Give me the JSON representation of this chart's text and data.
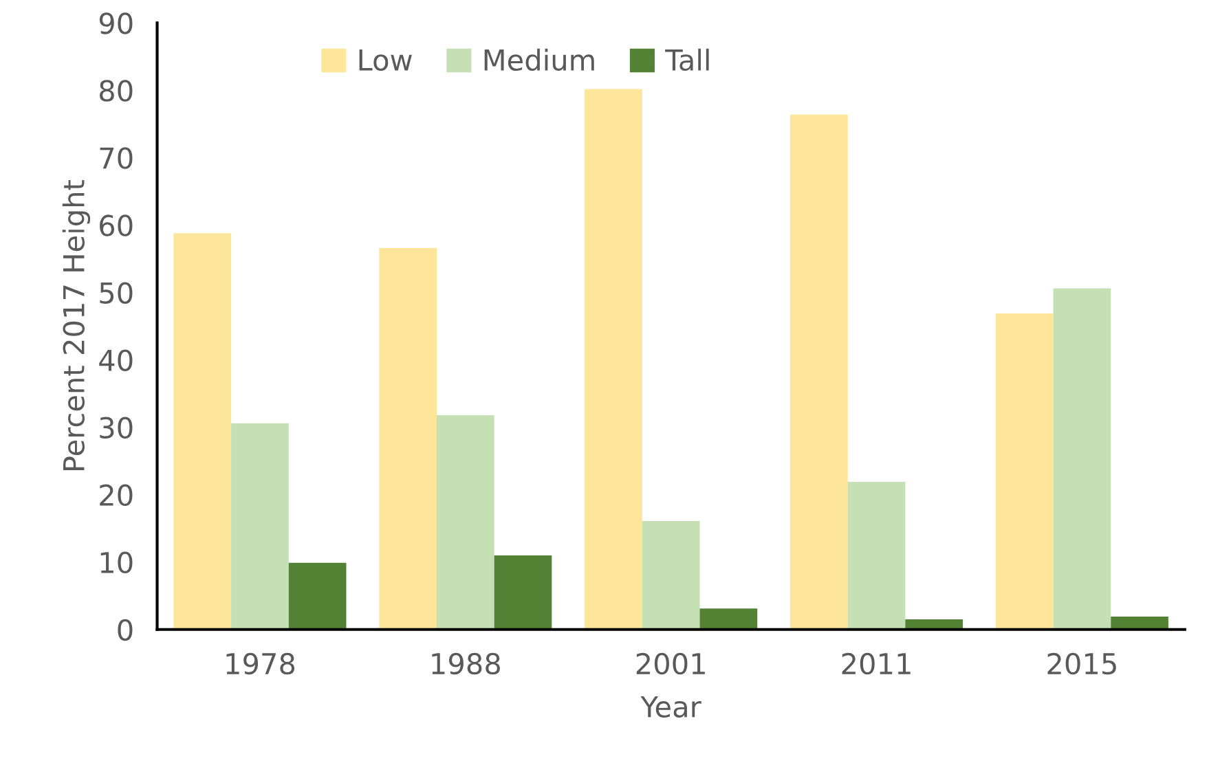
{
  "chart_data": {
    "type": "bar",
    "xlabel": "Year",
    "ylabel": "Percent 2017 Height",
    "categories": [
      "1978",
      "1988",
      "2001",
      "2011",
      "2015"
    ],
    "series": [
      {
        "name": "Low",
        "color": "#fde59a",
        "values": [
          58.8,
          56.6,
          80.2,
          76.4,
          46.9
        ]
      },
      {
        "name": "Medium",
        "color": "#c5e0b4",
        "values": [
          30.6,
          31.8,
          16.1,
          21.9,
          50.6
        ]
      },
      {
        "name": "Tall",
        "color": "#548235",
        "values": [
          9.9,
          11.0,
          3.1,
          1.5,
          1.9
        ]
      }
    ],
    "ylim": [
      0,
      90
    ],
    "yticks": [
      0,
      10,
      20,
      30,
      40,
      50,
      60,
      70,
      80,
      90
    ],
    "grid": false,
    "legend": "top"
  }
}
